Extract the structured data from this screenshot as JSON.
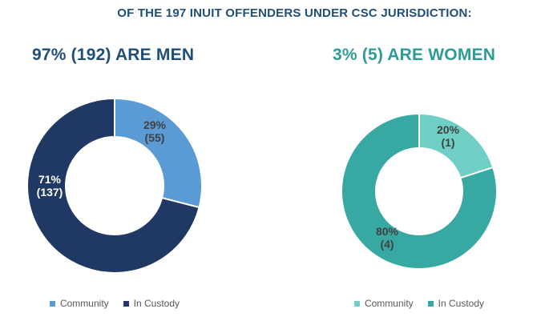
{
  "page": {
    "title": "OF THE 197 INUIT OFFENDERS UNDER CSC JURISDICTION:",
    "title_color": "#1F4E79",
    "total_offenders": 197
  },
  "chart_data": [
    {
      "type": "pie",
      "subtype": "donut",
      "title": "97% (192) ARE MEN",
      "title_color": "#1F4E79",
      "group_percent": 97,
      "group_count": 192,
      "categories": [
        "Community",
        "In Custody"
      ],
      "values": [
        29,
        71
      ],
      "counts": [
        55,
        137
      ],
      "slice_labels": [
        "29%\n(55)",
        "71%\n(137)"
      ],
      "slice_label_colors": [
        "#404040",
        "#FFFFFF"
      ],
      "colors": [
        "#5B9BD5",
        "#1F3864"
      ],
      "start_angle": 0,
      "direction": "clockwise",
      "legend_position": "bottom"
    },
    {
      "type": "pie",
      "subtype": "donut",
      "title": "3% (5) ARE WOMEN",
      "title_color": "#2E9B96",
      "group_percent": 3,
      "group_count": 5,
      "categories": [
        "Community",
        "In Custody"
      ],
      "values": [
        20,
        80
      ],
      "counts": [
        1,
        4
      ],
      "slice_labels": [
        "20%\n(1)",
        "80%\n(4)"
      ],
      "slice_label_colors": [
        "#404040",
        "#404040"
      ],
      "colors": [
        "#6FCFC5",
        "#38A9A2"
      ],
      "start_angle": 0,
      "direction": "clockwise",
      "legend_position": "bottom"
    }
  ]
}
